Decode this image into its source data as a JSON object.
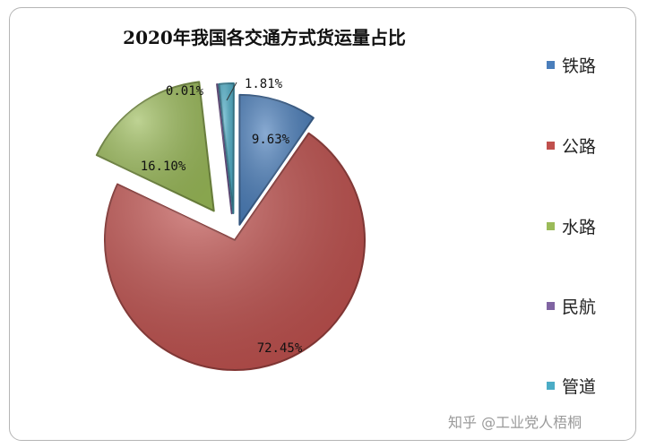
{
  "chart_data": {
    "type": "pie",
    "title": "2020年我国各交通方式货运量占比",
    "categories": [
      "铁路",
      "公路",
      "水路",
      "民航",
      "管道"
    ],
    "values": [
      9.63,
      72.45,
      16.1,
      0.01,
      1.81
    ],
    "data_labels": [
      "9.63%",
      "72.45%",
      "16.10%",
      "0.01%",
      "1.81%"
    ],
    "colors": [
      "#4a7ebb",
      "#c0504d",
      "#9bbb59",
      "#8064a2",
      "#4bacc6"
    ],
    "legend_position": "right",
    "exploded": true
  },
  "watermark": "知乎 @工业党人梧桐"
}
